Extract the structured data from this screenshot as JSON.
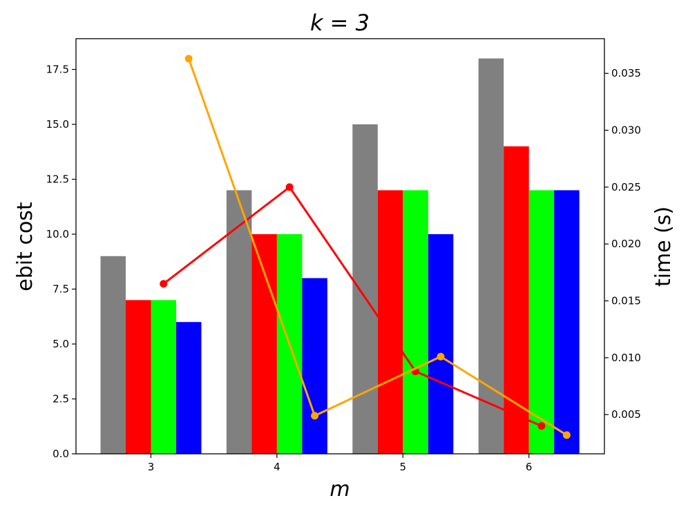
{
  "chart_data": {
    "type": "bar",
    "title": "k = 3",
    "xlabel": "m",
    "ylabel": "ebit cost",
    "y2label": "time (s)",
    "categories": [
      "3",
      "4",
      "5",
      "6"
    ],
    "ylim": [
      0,
      18.9
    ],
    "y2lim": [
      0.00155,
      0.03805
    ],
    "yticks": [
      "0.0",
      "2.5",
      "5.0",
      "7.5",
      "10.0",
      "12.5",
      "15.0",
      "17.5"
    ],
    "y2ticks": [
      "0.005",
      "0.010",
      "0.015",
      "0.020",
      "0.025",
      "0.030",
      "0.035"
    ],
    "bar_series": [
      {
        "color": "#808080",
        "values": [
          9,
          12,
          15,
          18
        ]
      },
      {
        "color": "#ff0000",
        "values": [
          7,
          10,
          12,
          14
        ]
      },
      {
        "color": "#00ff00",
        "values": [
          7,
          10,
          12,
          12
        ]
      },
      {
        "color": "#0000ff",
        "values": [
          6,
          8,
          10,
          12
        ]
      }
    ],
    "line_series": [
      {
        "color": "#ff0000",
        "x_offset": 0.1,
        "values": [
          0.0165,
          0.025,
          0.0088,
          0.004
        ]
      },
      {
        "color": "#ffa500",
        "x_offset": 0.3,
        "values": [
          0.0363,
          0.0049,
          0.0101,
          0.0032
        ]
      }
    ],
    "grid": false,
    "legend": "none"
  }
}
